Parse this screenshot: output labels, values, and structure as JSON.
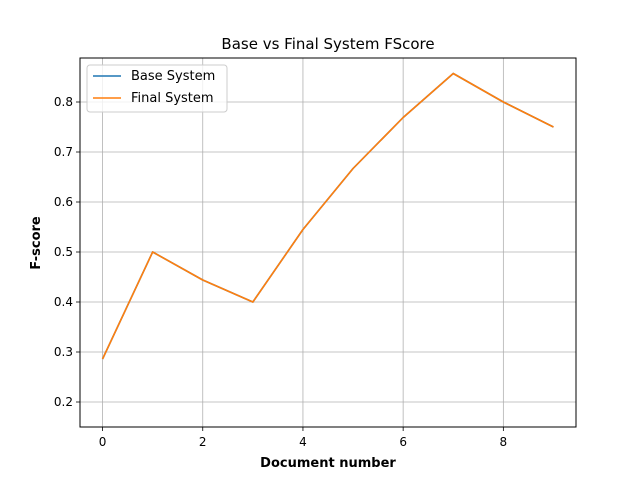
{
  "chart_data": {
    "type": "line",
    "title": "Base vs Final System FScore",
    "xlabel": "Document number",
    "ylabel": "F-score",
    "x": [
      0,
      1,
      2,
      3,
      4,
      5,
      6,
      7,
      8,
      9
    ],
    "xlim": [
      -0.45,
      9.45
    ],
    "ylim": [
      0.15,
      0.888
    ],
    "xticks": [
      0,
      2,
      4,
      6,
      8
    ],
    "yticks": [
      0.2,
      0.3,
      0.4,
      0.5,
      0.6,
      0.7,
      0.8
    ],
    "grid": true,
    "legend_position": "top-left",
    "series": [
      {
        "name": "Base System",
        "color": "#1f77b4",
        "values": [
          0.286,
          0.5,
          0.444,
          0.4,
          0.545,
          0.667,
          0.769,
          0.857,
          0.8,
          0.75
        ]
      },
      {
        "name": "Final System",
        "color": "#ff7f0e",
        "values": [
          0.286,
          0.5,
          0.444,
          0.4,
          0.545,
          0.667,
          0.769,
          0.857,
          0.8,
          0.75
        ]
      }
    ]
  }
}
